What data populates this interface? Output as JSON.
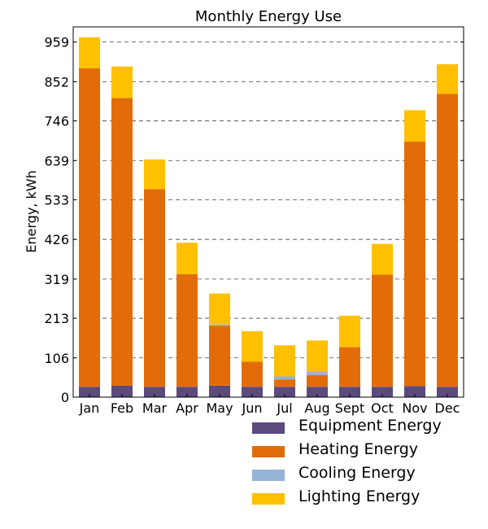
{
  "chart_data": {
    "type": "bar",
    "stacked": true,
    "title": "Monthly Energy Use",
    "xlabel": "",
    "ylabel": "Energy, kWh",
    "ylim": [
      0,
      1000
    ],
    "yticks": [
      0,
      106,
      213,
      319,
      426,
      533,
      639,
      746,
      852,
      959
    ],
    "grid": "horizontal-dashed",
    "categories": [
      "Jan",
      "Feb",
      "Mar",
      "Apr",
      "May",
      "Jun",
      "Jul",
      "Aug",
      "Sept",
      "Oct",
      "Nov",
      "Dec"
    ],
    "series": [
      {
        "name": "Equipment Energy",
        "color": "#5b4a7c",
        "values": [
          28,
          31,
          28,
          28,
          31,
          28,
          28,
          28,
          28,
          28,
          30,
          28
        ]
      },
      {
        "name": "Heating Energy",
        "color": "#e36c0a",
        "values": [
          860,
          777,
          534,
          304,
          162,
          68,
          20,
          32,
          107,
          303,
          660,
          791
        ]
      },
      {
        "name": "Cooling Energy",
        "color": "#95b3d7",
        "values": [
          0,
          0,
          0,
          0,
          3,
          0,
          8,
          8,
          0,
          0,
          0,
          0
        ]
      },
      {
        "name": "Lighting Energy",
        "color": "#ffc000",
        "values": [
          84,
          85,
          80,
          85,
          84,
          82,
          84,
          85,
          85,
          83,
          85,
          80
        ]
      }
    ]
  }
}
